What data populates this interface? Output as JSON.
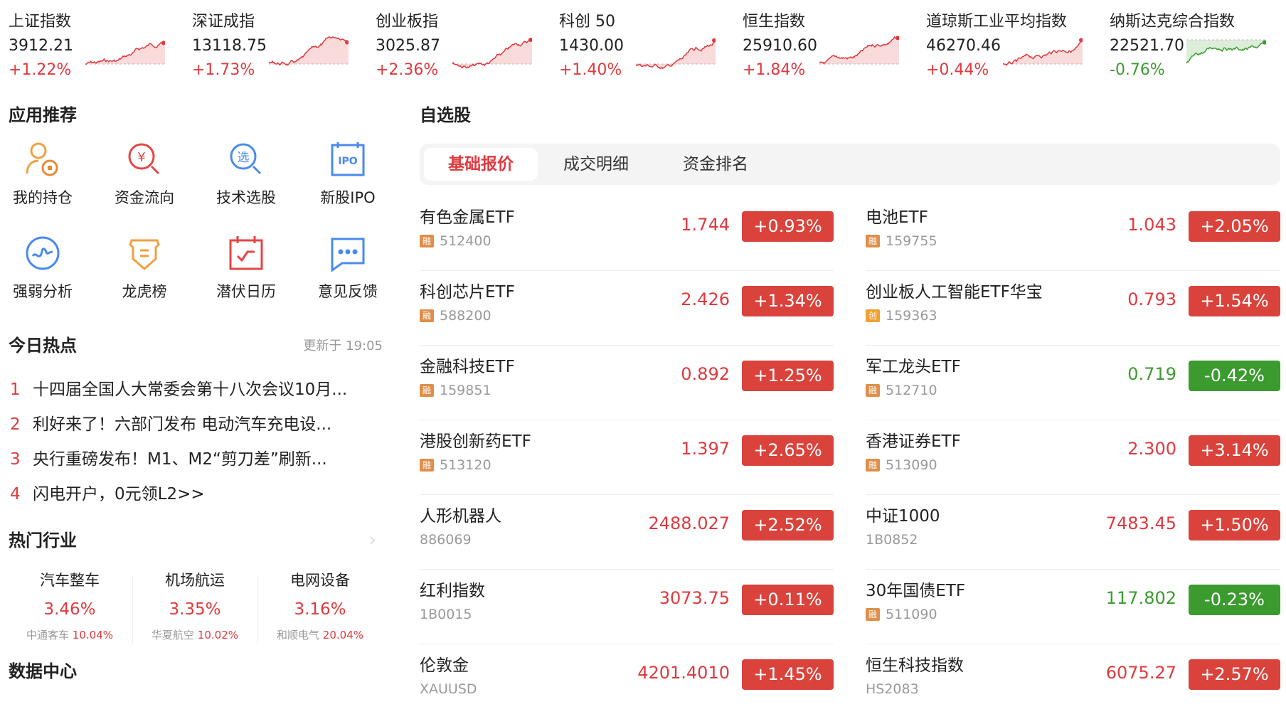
{
  "colors": {
    "up": "#e0393e",
    "down": "#3b9b2f",
    "up_badge": "#d9433b",
    "down_badge": "#3b9b2f",
    "tag_rong": "#df8f4a",
    "tag_chuang": "#f0a030"
  },
  "indices": [
    {
      "name": "上证指数",
      "value": "3912.21",
      "change": "+1.22%",
      "dir": "up"
    },
    {
      "name": "深证成指",
      "value": "13118.75",
      "change": "+1.73%",
      "dir": "up"
    },
    {
      "name": "创业板指",
      "value": "3025.87",
      "change": "+2.36%",
      "dir": "up"
    },
    {
      "name": "科创 50",
      "value": "1430.00",
      "change": "+1.40%",
      "dir": "up"
    },
    {
      "name": "恒生指数",
      "value": "25910.60",
      "change": "+1.84%",
      "dir": "up"
    },
    {
      "name": "道琼斯工业平均指数",
      "value": "46270.46",
      "change": "+0.44%",
      "dir": "up"
    },
    {
      "name": "纳斯达克综合指数",
      "value": "22521.70",
      "change": "-0.76%",
      "dir": "down"
    }
  ],
  "apps": {
    "title": "应用推荐",
    "items": [
      {
        "label": "我的持仓",
        "icon": "user-coin-icon"
      },
      {
        "label": "资金流向",
        "icon": "yuan-search-icon"
      },
      {
        "label": "技术选股",
        "icon": "select-search-icon"
      },
      {
        "label": "新股IPO",
        "icon": "ipo-calendar-icon"
      },
      {
        "label": "强弱分析",
        "icon": "wave-circle-icon"
      },
      {
        "label": "龙虎榜",
        "icon": "shield-icon"
      },
      {
        "label": "潜伏日历",
        "icon": "check-calendar-icon"
      },
      {
        "label": "意见反馈",
        "icon": "chat-bubble-icon"
      }
    ]
  },
  "hot": {
    "title": "今日热点",
    "updated": "更新于 19:05",
    "items": [
      {
        "n": "1",
        "text": "十四届全国人大常委会第十八次会议10月..."
      },
      {
        "n": "2",
        "text": "利好来了！六部门发布 电动汽车充电设..."
      },
      {
        "n": "3",
        "text": "央行重磅发布！M1、M2“剪刀差”刷新..."
      },
      {
        "n": "4",
        "text": "闪电开户，0元领L2>>"
      }
    ]
  },
  "industry": {
    "title": "热门行业",
    "items": [
      {
        "name": "汽车整车",
        "pct": "3.46%",
        "stock": "中通客车",
        "stock_pct": "10.04%"
      },
      {
        "name": "机场航运",
        "pct": "3.35%",
        "stock": "华夏航空",
        "stock_pct": "10.02%"
      },
      {
        "name": "电网设备",
        "pct": "3.16%",
        "stock": "和顺电气",
        "stock_pct": "20.04%"
      }
    ]
  },
  "data_center": {
    "title": "数据中心"
  },
  "watchlist": {
    "title": "自选股",
    "tabs": [
      "基础报价",
      "成交明细",
      "资金排名"
    ],
    "active_tab": 0,
    "left": [
      {
        "name": "有色金属ETF",
        "tag": "融",
        "code": "512400",
        "price": "1.744",
        "change": "+0.93%",
        "dir": "up"
      },
      {
        "name": "科创芯片ETF",
        "tag": "融",
        "code": "588200",
        "price": "2.426",
        "change": "+1.34%",
        "dir": "up"
      },
      {
        "name": "金融科技ETF",
        "tag": "融",
        "code": "159851",
        "price": "0.892",
        "change": "+1.25%",
        "dir": "up"
      },
      {
        "name": "港股创新药ETF",
        "tag": "融",
        "code": "513120",
        "price": "1.397",
        "change": "+2.65%",
        "dir": "up"
      },
      {
        "name": "人形机器人",
        "tag": "",
        "code": "886069",
        "price": "2488.027",
        "change": "+2.52%",
        "dir": "up"
      },
      {
        "name": "红利指数",
        "tag": "",
        "code": "1B0015",
        "price": "3073.75",
        "change": "+0.11%",
        "dir": "up"
      },
      {
        "name": "伦敦金",
        "tag": "",
        "code": "XAUUSD",
        "price": "4201.4010",
        "change": "+1.45%",
        "dir": "up"
      }
    ],
    "right": [
      {
        "name": "电池ETF",
        "tag": "融",
        "code": "159755",
        "price": "1.043",
        "change": "+2.05%",
        "dir": "up"
      },
      {
        "name": "创业板人工智能ETF华宝",
        "tag": "创",
        "code": "159363",
        "price": "0.793",
        "change": "+1.54%",
        "dir": "up"
      },
      {
        "name": "军工龙头ETF",
        "tag": "融",
        "code": "512710",
        "price": "0.719",
        "change": "-0.42%",
        "dir": "down"
      },
      {
        "name": "香港证券ETF",
        "tag": "融",
        "code": "513090",
        "price": "2.300",
        "change": "+3.14%",
        "dir": "up"
      },
      {
        "name": "中证1000",
        "tag": "",
        "code": "1B0852",
        "price": "7483.45",
        "change": "+1.50%",
        "dir": "up"
      },
      {
        "name": "30年国债ETF",
        "tag": "融",
        "code": "511090",
        "price": "117.802",
        "change": "-0.23%",
        "dir": "down"
      },
      {
        "name": "恒生科技指数",
        "tag": "",
        "code": "HS2083",
        "price": "6075.27",
        "change": "+2.57%",
        "dir": "up"
      }
    ]
  }
}
